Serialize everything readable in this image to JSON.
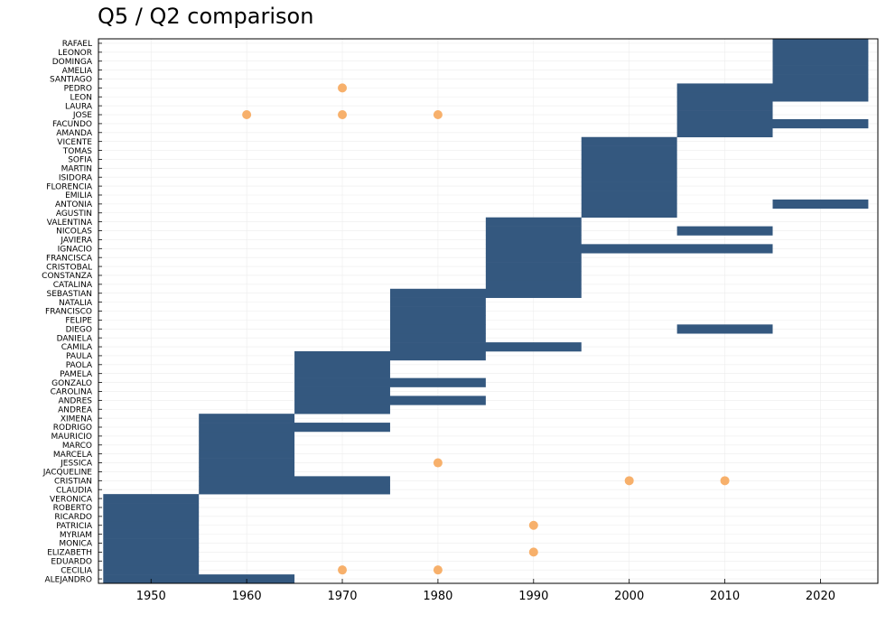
{
  "chart_data": {
    "type": "heatmap",
    "title": "Q5 / Q2 comparison",
    "xlabel": "",
    "ylabel": "",
    "x_ticks": [
      1950,
      1960,
      1970,
      1980,
      1990,
      2000,
      2010,
      2020
    ],
    "xlim": [
      1944.5,
      2026
    ],
    "grid": true,
    "colors": {
      "bar": "#34587f",
      "point": "#f7b06b"
    },
    "categories": [
      "ALEJANDRO",
      "CECILIA",
      "EDUARDO",
      "ELIZABETH",
      "MONICA",
      "MYRIAM",
      "PATRICIA",
      "RICARDO",
      "ROBERTO",
      "VERONICA",
      "CLAUDIA",
      "CRISTIAN",
      "JACQUELINE",
      "JESSICA",
      "MARCELA",
      "MARCO",
      "MAURICIO",
      "RODRIGO",
      "XIMENA",
      "ANDREA",
      "ANDRES",
      "CAROLINA",
      "GONZALO",
      "PAMELA",
      "PAOLA",
      "PAULA",
      "CAMILA",
      "DANIELA",
      "DIEGO",
      "FELIPE",
      "FRANCISCO",
      "NATALIA",
      "SEBASTIAN",
      "CATALINA",
      "CONSTANZA",
      "CRISTOBAL",
      "FRANCISCA",
      "IGNACIO",
      "JAVIERA",
      "NICOLAS",
      "VALENTINA",
      "AGUSTIN",
      "ANTONIA",
      "EMILIA",
      "FLORENCIA",
      "ISIDORA",
      "MARTIN",
      "SOFIA",
      "TOMAS",
      "VICENTE",
      "AMANDA",
      "FACUNDO",
      "JOSE",
      "LAURA",
      "LEON",
      "PEDRO",
      "SANTIAGO",
      "AMELIA",
      "DOMINGA",
      "LEONOR",
      "RAFAEL"
    ],
    "bars": [
      {
        "name": "ALEJANDRO",
        "x0": 1945,
        "x1": 1965
      },
      {
        "name": "CECILIA",
        "x0": 1945,
        "x1": 1955
      },
      {
        "name": "EDUARDO",
        "x0": 1945,
        "x1": 1955
      },
      {
        "name": "ELIZABETH",
        "x0": 1945,
        "x1": 1955
      },
      {
        "name": "MONICA",
        "x0": 1945,
        "x1": 1955
      },
      {
        "name": "MYRIAM",
        "x0": 1945,
        "x1": 1955
      },
      {
        "name": "PATRICIA",
        "x0": 1945,
        "x1": 1955
      },
      {
        "name": "RICARDO",
        "x0": 1945,
        "x1": 1955
      },
      {
        "name": "ROBERTO",
        "x0": 1945,
        "x1": 1955
      },
      {
        "name": "VERONICA",
        "x0": 1945,
        "x1": 1955
      },
      {
        "name": "CLAUDIA",
        "x0": 1955,
        "x1": 1975
      },
      {
        "name": "CRISTIAN",
        "x0": 1955,
        "x1": 1975
      },
      {
        "name": "JACQUELINE",
        "x0": 1955,
        "x1": 1965
      },
      {
        "name": "JESSICA",
        "x0": 1955,
        "x1": 1965
      },
      {
        "name": "MARCELA",
        "x0": 1955,
        "x1": 1965
      },
      {
        "name": "MARCO",
        "x0": 1955,
        "x1": 1965
      },
      {
        "name": "MAURICIO",
        "x0": 1955,
        "x1": 1965
      },
      {
        "name": "RODRIGO",
        "x0": 1955,
        "x1": 1975
      },
      {
        "name": "XIMENA",
        "x0": 1955,
        "x1": 1965
      },
      {
        "name": "ANDREA",
        "x0": 1965,
        "x1": 1975
      },
      {
        "name": "ANDRES",
        "x0": 1965,
        "x1": 1985
      },
      {
        "name": "CAROLINA",
        "x0": 1965,
        "x1": 1975
      },
      {
        "name": "GONZALO",
        "x0": 1965,
        "x1": 1985
      },
      {
        "name": "PAMELA",
        "x0": 1965,
        "x1": 1975
      },
      {
        "name": "PAOLA",
        "x0": 1965,
        "x1": 1975
      },
      {
        "name": "PAULA",
        "x0": 1965,
        "x1": 1985
      },
      {
        "name": "CAMILA",
        "x0": 1975,
        "x1": 1995
      },
      {
        "name": "DANIELA",
        "x0": 1975,
        "x1": 1985
      },
      {
        "name": "DIEGO",
        "x0": 1975,
        "x1": 1985
      },
      {
        "name": "DIEGO",
        "x0": 2005,
        "x1": 2015
      },
      {
        "name": "FELIPE",
        "x0": 1975,
        "x1": 1985
      },
      {
        "name": "FRANCISCO",
        "x0": 1975,
        "x1": 1985
      },
      {
        "name": "NATALIA",
        "x0": 1975,
        "x1": 1985
      },
      {
        "name": "SEBASTIAN",
        "x0": 1975,
        "x1": 1995
      },
      {
        "name": "CATALINA",
        "x0": 1985,
        "x1": 1995
      },
      {
        "name": "CONSTANZA",
        "x0": 1985,
        "x1": 1995
      },
      {
        "name": "CRISTOBAL",
        "x0": 1985,
        "x1": 1995
      },
      {
        "name": "FRANCISCA",
        "x0": 1985,
        "x1": 1995
      },
      {
        "name": "IGNACIO",
        "x0": 1985,
        "x1": 2015
      },
      {
        "name": "JAVIERA",
        "x0": 1985,
        "x1": 1995
      },
      {
        "name": "NICOLAS",
        "x0": 1985,
        "x1": 1995
      },
      {
        "name": "NICOLAS",
        "x0": 2005,
        "x1": 2015
      },
      {
        "name": "VALENTINA",
        "x0": 1985,
        "x1": 1995
      },
      {
        "name": "AGUSTIN",
        "x0": 1995,
        "x1": 2005
      },
      {
        "name": "ANTONIA",
        "x0": 1995,
        "x1": 2005
      },
      {
        "name": "ANTONIA",
        "x0": 2015,
        "x1": 2025
      },
      {
        "name": "EMILIA",
        "x0": 1995,
        "x1": 2005
      },
      {
        "name": "FLORENCIA",
        "x0": 1995,
        "x1": 2005
      },
      {
        "name": "ISIDORA",
        "x0": 1995,
        "x1": 2005
      },
      {
        "name": "MARTIN",
        "x0": 1995,
        "x1": 2005
      },
      {
        "name": "SOFIA",
        "x0": 1995,
        "x1": 2005
      },
      {
        "name": "TOMAS",
        "x0": 1995,
        "x1": 2005
      },
      {
        "name": "VICENTE",
        "x0": 1995,
        "x1": 2005
      },
      {
        "name": "AMANDA",
        "x0": 2005,
        "x1": 2015
      },
      {
        "name": "FACUNDO",
        "x0": 2005,
        "x1": 2025
      },
      {
        "name": "JOSE",
        "x0": 2005,
        "x1": 2015
      },
      {
        "name": "LAURA",
        "x0": 2005,
        "x1": 2015
      },
      {
        "name": "LEON",
        "x0": 2005,
        "x1": 2025
      },
      {
        "name": "PEDRO",
        "x0": 2005,
        "x1": 2025
      },
      {
        "name": "SANTIAGO",
        "x0": 2015,
        "x1": 2025
      },
      {
        "name": "AMELIA",
        "x0": 2015,
        "x1": 2025
      },
      {
        "name": "DOMINGA",
        "x0": 2015,
        "x1": 2025
      },
      {
        "name": "LEONOR",
        "x0": 2015,
        "x1": 2025
      },
      {
        "name": "RAFAEL",
        "x0": 2015,
        "x1": 2025
      }
    ],
    "points": [
      {
        "name": "PEDRO",
        "x": 1970
      },
      {
        "name": "JOSE",
        "x": 1960
      },
      {
        "name": "JOSE",
        "x": 1970
      },
      {
        "name": "JOSE",
        "x": 1980
      },
      {
        "name": "JESSICA",
        "x": 1980
      },
      {
        "name": "CRISTIAN",
        "x": 2000
      },
      {
        "name": "CRISTIAN",
        "x": 2010
      },
      {
        "name": "PATRICIA",
        "x": 1990
      },
      {
        "name": "ELIZABETH",
        "x": 1990
      },
      {
        "name": "CECILIA",
        "x": 1970
      },
      {
        "name": "CECILIA",
        "x": 1980
      }
    ]
  }
}
